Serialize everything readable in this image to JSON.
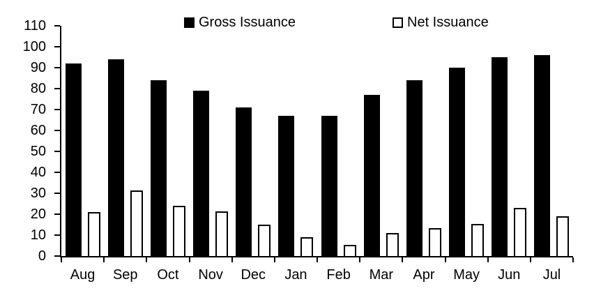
{
  "chart": {
    "background_color": "#ffffff",
    "axis_color": "#000000",
    "text_color": "#000000"
  },
  "chart_data": {
    "type": "bar",
    "title": "",
    "xlabel": "",
    "ylabel": "",
    "categories": [
      "Aug",
      "Sep",
      "Oct",
      "Nov",
      "Dec",
      "Jan",
      "Feb",
      "Mar",
      "Apr",
      "May",
      "Jun",
      "Jul"
    ],
    "series": [
      {
        "name": "Gross Issuance",
        "fill": "#000000",
        "outline": "#000000",
        "values": [
          92,
          94,
          84,
          79,
          71,
          67,
          67,
          77,
          84,
          90,
          95,
          96
        ]
      },
      {
        "name": "Net Issuance",
        "fill": "#ffffff",
        "outline": "#000000",
        "values": [
          21,
          31.5,
          24,
          21.5,
          15,
          9,
          5.5,
          11,
          13.5,
          15.5,
          23,
          19
        ]
      }
    ],
    "ylim": [
      0,
      110
    ],
    "ytick_step": 10,
    "yticks": [
      0,
      10,
      20,
      30,
      40,
      50,
      60,
      70,
      80,
      90,
      100,
      110
    ],
    "grid": false,
    "legend_position": "top-inside"
  }
}
